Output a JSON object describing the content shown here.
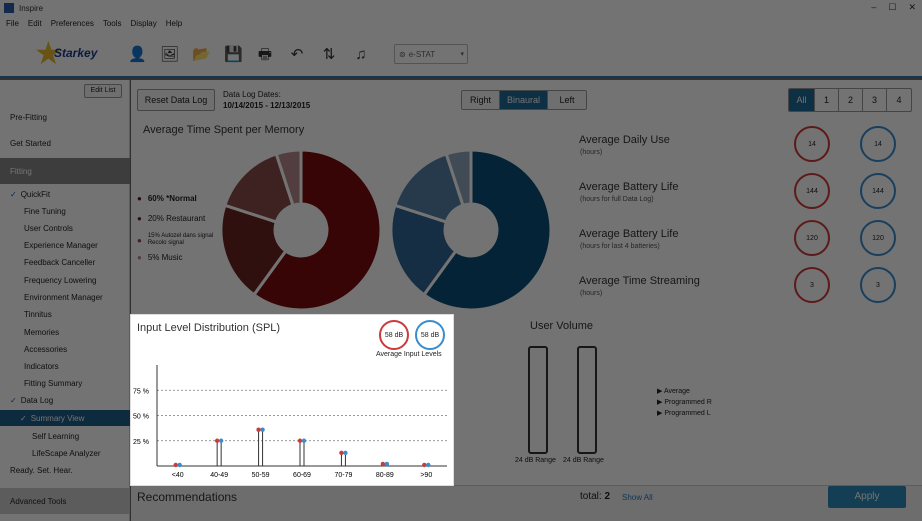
{
  "window": {
    "title": "Inspire",
    "controls": [
      "–",
      "☐",
      "✕"
    ]
  },
  "menu": [
    "File",
    "Edit",
    "Preferences",
    "Tools",
    "Display",
    "Help"
  ],
  "brand": "Starkey",
  "toolbar": {
    "estat_label": "e-STAT",
    "icons": [
      "person-icon",
      "image-icon",
      "folder-icon",
      "save-icon",
      "print-icon",
      "undo-icon",
      "stream-icon",
      "music-icon"
    ]
  },
  "sidebar": {
    "edit_list": "Edit List",
    "pre_fitting": "Pre-Fitting",
    "get_started": "Get Started",
    "fitting": "Fitting",
    "items": [
      "QuickFit",
      "Fine Tuning",
      "User Controls",
      "Experience Manager",
      "Feedback Canceller",
      "Frequency Lowering",
      "Environment Manager",
      "Tinnitus",
      "Memories",
      "Accessories",
      "Indicators",
      "Fitting Summary",
      "Data Log"
    ],
    "data_log_children": [
      "Summary View",
      "Self Learning",
      "LifeScape Analyzer"
    ],
    "ready": "Ready. Set. Hear.",
    "advanced": "Advanced Tools",
    "check": "✓"
  },
  "header": {
    "reset": "Reset Data Log",
    "dates_label": "Data Log Dates:",
    "dates": "10/14/2015 - 12/13/2015",
    "sides": [
      "Right",
      "Binaural",
      "Left"
    ],
    "memories": [
      "All",
      "1",
      "2",
      "3",
      "4"
    ]
  },
  "memory_panel": {
    "title": "Average Time Spent per Memory",
    "legend": [
      {
        "label": "60% *Normal",
        "pct": 60
      },
      {
        "label": "20% Restaurant",
        "pct": 20
      },
      {
        "label": "15% Autozel dans signal Recolo signal",
        "pct": 15
      },
      {
        "label": "5% Music",
        "pct": 5
      }
    ],
    "red_colors": [
      "#7a0c0c",
      "#6b2323",
      "#8a4a4a",
      "#b58a8a"
    ],
    "blue_colors": [
      "#0c4f7a",
      "#2f6796",
      "#5580a8",
      "#8fa7bf"
    ]
  },
  "metrics": [
    {
      "title": "Average Daily Use",
      "sub": "(hours)",
      "right": "14",
      "left": "14"
    },
    {
      "title": "Average Battery Life",
      "sub": "(hours for full Data Log)",
      "right": "144",
      "left": "144"
    },
    {
      "title": "Average Battery Life",
      "sub": "(hours for last 4 batteries)",
      "right": "120",
      "left": "120"
    },
    {
      "title": "Average Time Streaming",
      "sub": "(hours)",
      "right": "3",
      "left": "3"
    }
  ],
  "input_level": {
    "title": "Input Level Distribution (SPL)",
    "badge_right": "58 dB",
    "badge_left": "58 dB",
    "badge_caption": "Average Input Levels"
  },
  "chart_data": {
    "type": "bar",
    "categories": [
      "<40",
      "40-49",
      "50-59",
      "60-69",
      "70-79",
      "80-89",
      ">90"
    ],
    "series": [
      {
        "values": [
          1,
          25,
          36,
          25,
          13,
          2,
          1
        ],
        "color": "#cc3b3b"
      },
      {
        "values": [
          1,
          25,
          36,
          25,
          13,
          2,
          1
        ],
        "color": "#3b8ccc"
      }
    ],
    "yticks": [
      "25 %",
      "50 %",
      "75 %"
    ],
    "ylim": [
      0,
      100
    ],
    "grid": true
  },
  "user_volume": {
    "title": "User Volume",
    "range_right": "24 dB Range",
    "range_left": "24 dB Range",
    "legend": [
      "Average",
      "Programmed R",
      "Programmed L"
    ]
  },
  "footer": {
    "recommendations": "Recommendations",
    "total_label": "total:",
    "total": "2",
    "show_all": "Show All",
    "apply": "Apply"
  }
}
